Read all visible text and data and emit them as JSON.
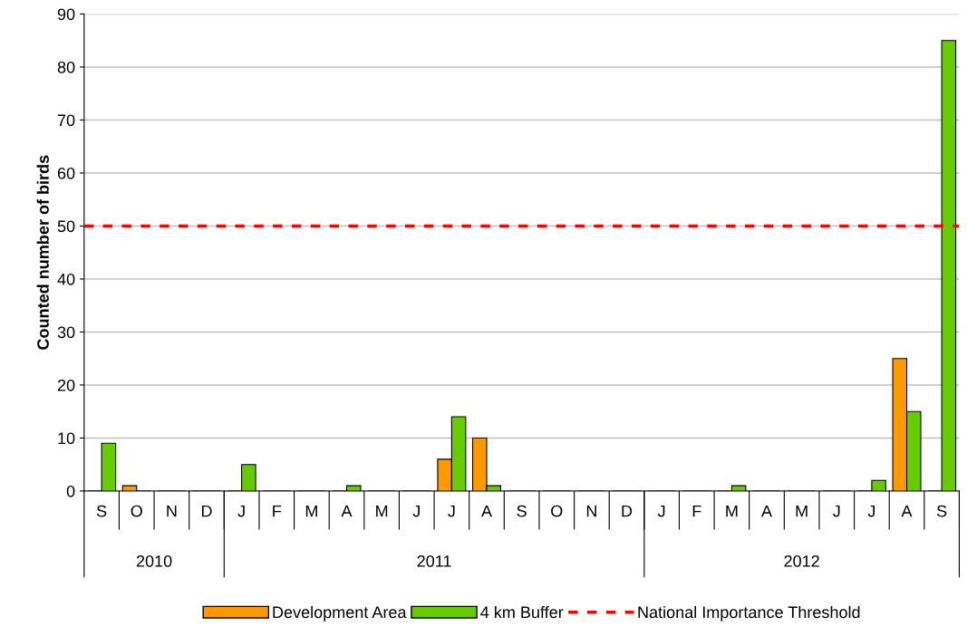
{
  "chart_data": {
    "type": "bar",
    "ylabel": "Counted number of birds",
    "categories": [
      "S",
      "O",
      "N",
      "D",
      "J",
      "F",
      "M",
      "A",
      "M",
      "J",
      "J",
      "A",
      "S",
      "O",
      "N",
      "D",
      "J",
      "F",
      "M",
      "A",
      "M",
      "J",
      "J",
      "A",
      "S"
    ],
    "series": [
      {
        "name": "Development Area",
        "color": "#ff9900",
        "values": [
          0,
          1,
          0,
          0,
          0,
          0,
          0,
          0,
          0,
          0,
          6,
          10,
          0,
          0,
          0,
          0,
          0,
          0,
          0,
          0,
          0,
          0,
          0,
          25,
          0
        ]
      },
      {
        "name": "4 km Buffer",
        "color": "#66cc00",
        "values": [
          9,
          0,
          0,
          0,
          5,
          0,
          0,
          1,
          0,
          0,
          14,
          1,
          0,
          0,
          0,
          0,
          0,
          0,
          1,
          0,
          0,
          0,
          2,
          15,
          85
        ]
      }
    ],
    "ylim": [
      0,
      90
    ],
    "yticks": [
      0,
      10,
      20,
      30,
      40,
      50,
      60,
      70,
      80,
      90
    ],
    "grid": "y",
    "legend": "bottom",
    "ref_lines": [
      {
        "axis": "y",
        "value": 50,
        "label": "National Importance Threshold",
        "color": "#ff0000",
        "line_style": "dashed"
      }
    ],
    "annotations": [
      "2010",
      "2011",
      "2012"
    ]
  }
}
